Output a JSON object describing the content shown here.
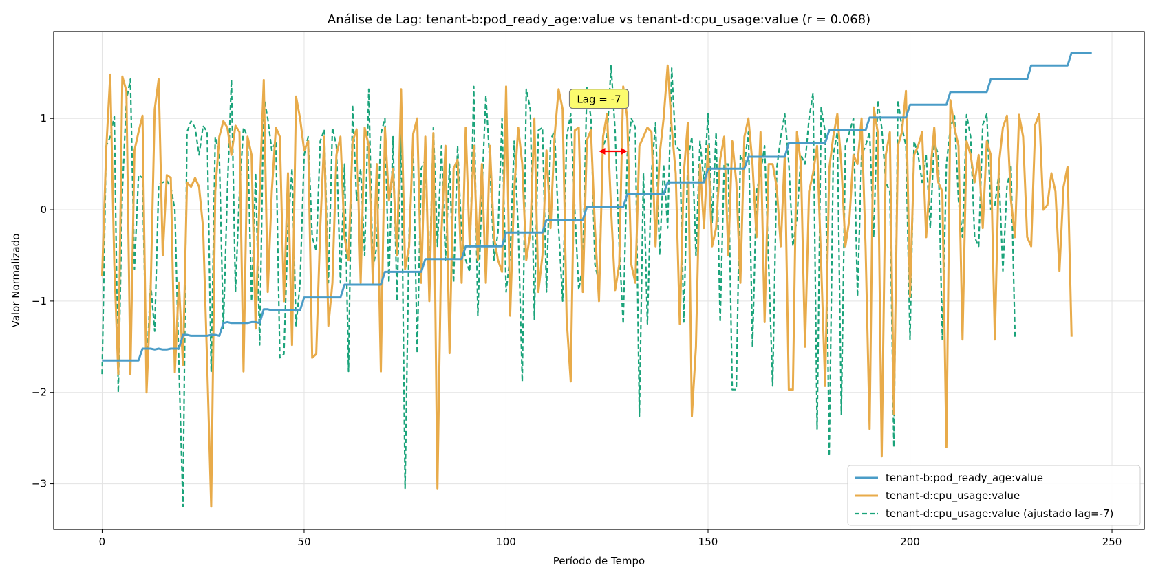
{
  "chart_data": {
    "type": "line",
    "title": "Análise de Lag: tenant-b:pod_ready_age:value vs tenant-d:cpu_usage:value (r = 0.068)",
    "xlabel": "Período de Tempo",
    "ylabel": "Valor Normalizado",
    "xlim": [
      -12,
      258
    ],
    "ylim": [
      -3.5,
      1.95
    ],
    "xticks": [
      0,
      50,
      100,
      150,
      200,
      250
    ],
    "yticks": [
      -3,
      -2,
      -1,
      0,
      1
    ],
    "grid": true,
    "legend_position": "lower-right",
    "annotation": {
      "text": "Lag = -7",
      "x": 123,
      "y": 1.2,
      "arrow_from": 123,
      "arrow_to": 130,
      "arrow_y": 0.64,
      "arrow_color": "#ff0000"
    },
    "series": [
      {
        "name": "tenant-b:pod_ready_age:value",
        "color": "#4a9cc7",
        "style": "solid",
        "x_start": 0,
        "values": [
          -1.65,
          -1.65,
          -1.65,
          -1.65,
          -1.65,
          -1.65,
          -1.65,
          -1.65,
          -1.65,
          -1.65,
          -1.52,
          -1.52,
          -1.52,
          -1.53,
          -1.52,
          -1.53,
          -1.53,
          -1.52,
          -1.52,
          -1.52,
          -1.37,
          -1.37,
          -1.38,
          -1.38,
          -1.38,
          -1.38,
          -1.38,
          -1.37,
          -1.37,
          -1.38,
          -1.24,
          -1.23,
          -1.24,
          -1.24,
          -1.24,
          -1.24,
          -1.24,
          -1.23,
          -1.23,
          -1.24,
          -1.09,
          -1.09,
          -1.1,
          -1.1,
          -1.1,
          -1.1,
          -1.1,
          -1.1,
          -1.1,
          -1.1,
          -0.96,
          -0.96,
          -0.96,
          -0.96,
          -0.96,
          -0.96,
          -0.96,
          -0.96,
          -0.96,
          -0.96,
          -0.82,
          -0.82,
          -0.82,
          -0.82,
          -0.82,
          -0.82,
          -0.82,
          -0.82,
          -0.82,
          -0.82,
          -0.68,
          -0.68,
          -0.68,
          -0.68,
          -0.68,
          -0.68,
          -0.68,
          -0.68,
          -0.68,
          -0.68,
          -0.54,
          -0.54,
          -0.54,
          -0.54,
          -0.54,
          -0.54,
          -0.54,
          -0.54,
          -0.54,
          -0.54,
          -0.4,
          -0.4,
          -0.4,
          -0.4,
          -0.4,
          -0.4,
          -0.4,
          -0.4,
          -0.4,
          -0.4,
          -0.25,
          -0.25,
          -0.25,
          -0.25,
          -0.25,
          -0.25,
          -0.25,
          -0.25,
          -0.25,
          -0.25,
          -0.11,
          -0.11,
          -0.11,
          -0.11,
          -0.11,
          -0.11,
          -0.11,
          -0.11,
          -0.11,
          -0.11,
          0.03,
          0.03,
          0.03,
          0.03,
          0.03,
          0.03,
          0.03,
          0.03,
          0.03,
          0.03,
          0.17,
          0.17,
          0.17,
          0.17,
          0.17,
          0.17,
          0.17,
          0.17,
          0.17,
          0.17,
          0.3,
          0.3,
          0.3,
          0.3,
          0.3,
          0.3,
          0.3,
          0.3,
          0.3,
          0.3,
          0.45,
          0.45,
          0.45,
          0.45,
          0.45,
          0.45,
          0.45,
          0.45,
          0.45,
          0.45,
          0.58,
          0.58,
          0.58,
          0.58,
          0.58,
          0.58,
          0.58,
          0.58,
          0.58,
          0.58,
          0.73,
          0.73,
          0.73,
          0.73,
          0.73,
          0.73,
          0.73,
          0.73,
          0.73,
          0.73,
          0.87,
          0.87,
          0.87,
          0.87,
          0.87,
          0.87,
          0.87,
          0.87,
          0.87,
          0.87,
          1.01,
          1.01,
          1.01,
          1.01,
          1.01,
          1.01,
          1.01,
          1.01,
          1.01,
          1.01,
          1.15,
          1.15,
          1.15,
          1.15,
          1.15,
          1.15,
          1.15,
          1.15,
          1.15,
          1.15,
          1.29,
          1.29,
          1.29,
          1.29,
          1.29,
          1.29,
          1.29,
          1.29,
          1.29,
          1.29,
          1.43,
          1.43,
          1.43,
          1.43,
          1.43,
          1.43,
          1.43,
          1.43,
          1.43,
          1.43,
          1.58,
          1.58,
          1.58,
          1.58,
          1.58,
          1.58,
          1.58,
          1.58,
          1.58,
          1.58,
          1.72,
          1.72,
          1.72,
          1.72,
          1.72,
          1.72
        ]
      },
      {
        "name": "tenant-d:cpu_usage:value",
        "color": "#e8ab4a",
        "style": "solid",
        "x_start": 0,
        "values": [
          -0.73,
          0.65,
          1.48,
          -0.6,
          -1.8,
          1.46,
          1.3,
          -1.8,
          0.65,
          0.85,
          1.03,
          -2.0,
          -0.9,
          1.1,
          1.43,
          -0.5,
          0.38,
          0.35,
          -1.78,
          -0.8,
          -1.7,
          0.3,
          0.25,
          0.35,
          0.25,
          -0.2,
          -1.7,
          -3.25,
          0.2,
          0.8,
          0.97,
          0.9,
          0.6,
          0.92,
          0.85,
          -1.77,
          0.8,
          0.6,
          -1.3,
          0.2,
          1.42,
          -0.9,
          0.2,
          0.9,
          0.8,
          -1.0,
          0.4,
          -1.48,
          1.24,
          1.0,
          0.65,
          0.75,
          -1.62,
          -1.58,
          -0.2,
          0.8,
          -1.27,
          -0.8,
          0.6,
          0.8,
          -0.3,
          -0.55,
          0.75,
          0.88,
          -0.8,
          0.9,
          0.7,
          -0.8,
          0.5,
          -1.77,
          0.9,
          0.1,
          0.45,
          -0.5,
          1.32,
          -0.65,
          -0.4,
          0.83,
          1.0,
          -0.8,
          0.8,
          -1.0,
          0.84,
          -3.05,
          -0.25,
          0.7,
          -1.57,
          0.45,
          0.55,
          -0.8,
          0.9,
          -0.4,
          0.7,
          -0.55,
          0.5,
          -0.8,
          0.7,
          -0.3,
          -0.55,
          -0.68,
          1.35,
          -1.16,
          0.2,
          0.9,
          0.5,
          -0.55,
          -0.25,
          1.0,
          -0.9,
          -0.5,
          0.65,
          -0.2,
          0.8,
          1.32,
          1.1,
          -1.2,
          -1.88,
          0.87,
          0.9,
          -0.9,
          0.76,
          0.87,
          -0.2,
          -1.0,
          0.8,
          1.05,
          0.0,
          -0.88,
          -0.6,
          1.35,
          1.0,
          -0.6,
          -0.8,
          0.7,
          0.8,
          0.9,
          0.85,
          -0.4,
          0.6,
          1.0,
          1.58,
          0.9,
          0.4,
          -1.25,
          0.4,
          0.95,
          -2.26,
          -1.5,
          0.5,
          -0.2,
          0.7,
          -0.4,
          -0.2,
          0.55,
          0.8,
          -0.5,
          0.75,
          0.3,
          -0.8,
          0.8,
          1.0,
          0.5,
          -0.3,
          0.85,
          -1.23,
          0.5,
          0.5,
          0.25,
          -0.4,
          0.6,
          -1.97,
          -1.97,
          0.85,
          0.5,
          -1.5,
          0.2,
          0.4,
          0.7,
          -0.6,
          -1.93,
          0.45,
          0.8,
          1.05,
          0.5,
          -0.4,
          -0.1,
          0.6,
          0.5,
          1.0,
          -0.4,
          -2.4,
          1.12,
          0.85,
          -2.7,
          0.6,
          0.85,
          -2.24,
          0.7,
          0.85,
          1.3,
          -0.95,
          0.6,
          0.7,
          0.85,
          -0.3,
          0.4,
          0.9,
          0.3,
          0.2,
          -2.6,
          1.2,
          0.9,
          0.7,
          -1.42,
          0.75,
          0.6,
          0.3,
          0.6,
          -0.2,
          0.75,
          0.6,
          -1.42,
          0.5,
          0.9,
          1.03,
          0.1,
          -0.3,
          1.04,
          0.8,
          -0.3,
          -0.4,
          0.93,
          1.05,
          0.0,
          0.05,
          0.4,
          0.2,
          -0.67,
          0.25,
          0.47,
          -1.39
        ]
      },
      {
        "name": "tenant-d:cpu_usage:value (ajustado lag=-7)",
        "color": "#1aa37a",
        "style": "dashed",
        "x_start": 0,
        "values": [
          -1.8,
          0.7,
          0.8,
          1.02,
          -2.0,
          0.2,
          1.2,
          1.43,
          -0.65,
          0.38,
          0.35,
          -1.78,
          -0.8,
          -1.33,
          0.28,
          0.3,
          0.32,
          0.25,
          0.0,
          -1.7,
          -3.25,
          0.85,
          0.97,
          0.9,
          0.6,
          0.92,
          0.85,
          -1.77,
          0.8,
          0.6,
          -1.3,
          0.2,
          1.42,
          -0.9,
          0.2,
          0.9,
          0.8,
          -1.0,
          0.4,
          -1.48,
          1.24,
          1.0,
          0.65,
          0.75,
          -1.62,
          -1.58,
          -0.2,
          0.45,
          -1.27,
          -0.8,
          0.6,
          0.8,
          -0.3,
          -0.45,
          0.75,
          0.88,
          -0.8,
          0.9,
          0.7,
          -0.8,
          0.5,
          -1.77,
          1.15,
          0.1,
          0.45,
          -0.5,
          1.32,
          -0.65,
          -0.4,
          0.83,
          1.0,
          -0.8,
          0.8,
          -1.0,
          0.84,
          -3.05,
          -0.25,
          0.7,
          -1.57,
          0.45,
          0.55,
          -0.8,
          0.9,
          -0.4,
          0.7,
          -0.55,
          0.5,
          -0.8,
          0.7,
          -0.3,
          -0.55,
          -0.68,
          1.35,
          -1.16,
          0.2,
          1.25,
          0.5,
          -0.55,
          -0.25,
          1.0,
          -0.9,
          -0.5,
          0.75,
          -0.2,
          -1.88,
          1.32,
          1.1,
          -1.2,
          0.87,
          0.9,
          -0.9,
          0.76,
          0.87,
          -0.2,
          -1.0,
          0.8,
          1.05,
          0.0,
          -0.88,
          -0.6,
          1.35,
          1.0,
          -0.6,
          -0.8,
          0.7,
          0.8,
          1.58,
          0.85,
          -0.4,
          -1.25,
          0.6,
          1.0,
          0.9,
          -2.26,
          0.4,
          -1.25,
          0.4,
          0.95,
          -0.5,
          0.5,
          -0.2,
          1.55,
          0.7,
          0.65,
          -1.23,
          0.55,
          0.8,
          -0.5,
          0.75,
          0.3,
          1.05,
          -0.15,
          0.85,
          -1.23,
          0.5,
          0.5,
          -1.97,
          -1.97,
          0.6,
          0.5,
          0.85,
          -1.5,
          0.2,
          0.4,
          0.7,
          -0.6,
          -1.93,
          0.45,
          0.8,
          1.05,
          0.5,
          -0.4,
          -0.1,
          0.6,
          0.5,
          1.0,
          1.28,
          -2.4,
          1.12,
          0.85,
          -2.7,
          0.6,
          0.85,
          -2.24,
          0.7,
          0.85,
          1.0,
          -0.95,
          0.6,
          0.7,
          0.85,
          -0.3,
          1.2,
          0.9,
          0.3,
          0.2,
          -2.6,
          1.2,
          0.9,
          0.7,
          -1.42,
          0.75,
          0.6,
          0.3,
          0.6,
          -0.2,
          0.75,
          0.6,
          -1.42,
          0.5,
          0.9,
          1.03,
          0.1,
          -0.3,
          1.04,
          0.8,
          -0.3,
          -0.4,
          0.93,
          1.05,
          0.0,
          0.05,
          0.4,
          -0.67,
          0.25,
          0.47,
          -1.39
        ]
      }
    ]
  }
}
